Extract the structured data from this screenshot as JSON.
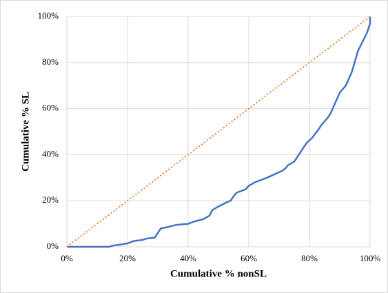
{
  "chart_data": {
    "type": "line",
    "x_label": "Cumulative % nonSL",
    "y_label": "Cumulative % SL",
    "xlim": [
      0,
      100
    ],
    "ylim": [
      0,
      100
    ],
    "xticks": [
      {
        "value": 0,
        "label": "0%"
      },
      {
        "value": 20,
        "label": "20%"
      },
      {
        "value": 40,
        "label": "40%"
      },
      {
        "value": 60,
        "label": "60%"
      },
      {
        "value": 80,
        "label": "80%"
      },
      {
        "value": 100,
        "label": "100%"
      }
    ],
    "yticks": [
      {
        "value": 0,
        "label": "0%"
      },
      {
        "value": 20,
        "label": "20%"
      },
      {
        "value": 40,
        "label": "40%"
      },
      {
        "value": 60,
        "label": "60%"
      },
      {
        "value": 80,
        "label": "80%"
      },
      {
        "value": 100,
        "label": "100%"
      }
    ],
    "grid": true,
    "series": [
      {
        "color": "#4472c4",
        "dash": "solid",
        "x": [
          0,
          2,
          14,
          15,
          18,
          20,
          21,
          22,
          25,
          26,
          29,
          30,
          31,
          33,
          36,
          40,
          42,
          45,
          47,
          48,
          50,
          53,
          54,
          55,
          56,
          59,
          60,
          62,
          66,
          71,
          72,
          73,
          75,
          76,
          78,
          79,
          81,
          83,
          84,
          86,
          87,
          88,
          89,
          90,
          92,
          94,
          96,
          99,
          100,
          100
        ],
        "values": [
          0,
          0,
          0,
          0.5,
          1,
          1.5,
          2,
          2.5,
          3,
          3.5,
          4,
          6,
          8,
          8.5,
          9.5,
          10,
          11,
          12,
          13.5,
          16,
          17.5,
          19.5,
          20,
          22,
          23.5,
          25,
          26.5,
          28,
          30,
          33,
          34,
          35.5,
          37,
          39,
          43,
          45,
          47.5,
          51,
          53,
          56,
          58,
          61,
          64,
          67,
          70,
          76,
          85,
          93,
          97,
          100
        ]
      },
      {
        "color": "#ed7d31",
        "dash": "dotted",
        "x": [
          0,
          100
        ],
        "values": [
          0,
          100
        ]
      }
    ]
  }
}
